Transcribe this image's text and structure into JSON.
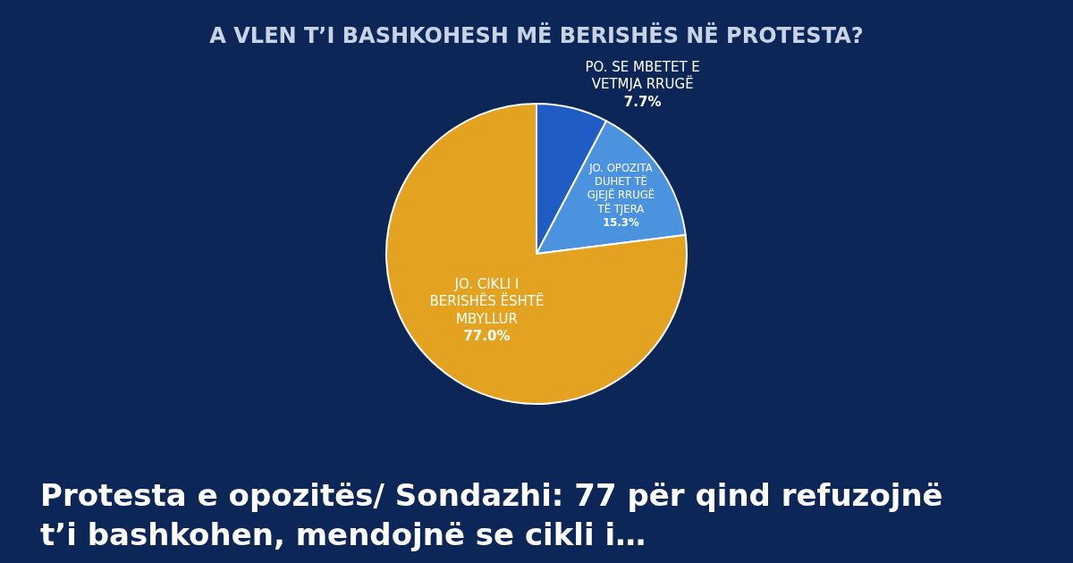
{
  "chart_data": {
    "type": "pie",
    "title": "A VLEN T’I BASHKOHESH MË BERISHËS NË PROTESTA?",
    "categories": [
      "PO. SE MBETET E VETMJA RRUGË",
      "JO. OPOZITA DUHET TË GJEJË RRUGË TË TJERA",
      "JO. CIKLI I BERISHËS ËSHTË MBYLLUR"
    ],
    "values": [
      7.7,
      15.3,
      77.0
    ],
    "value_labels": [
      "7.7%",
      "15.3%",
      "77.0%"
    ],
    "colors": [
      "#1f5cc4",
      "#4b93de",
      "#e3a21f"
    ],
    "legend": false,
    "annotations": [
      "Protesta e opozitës/ Sondazhi: 77 për qind refuzojnë t’i bashkohen, mendojnë se cikli i…"
    ]
  }
}
